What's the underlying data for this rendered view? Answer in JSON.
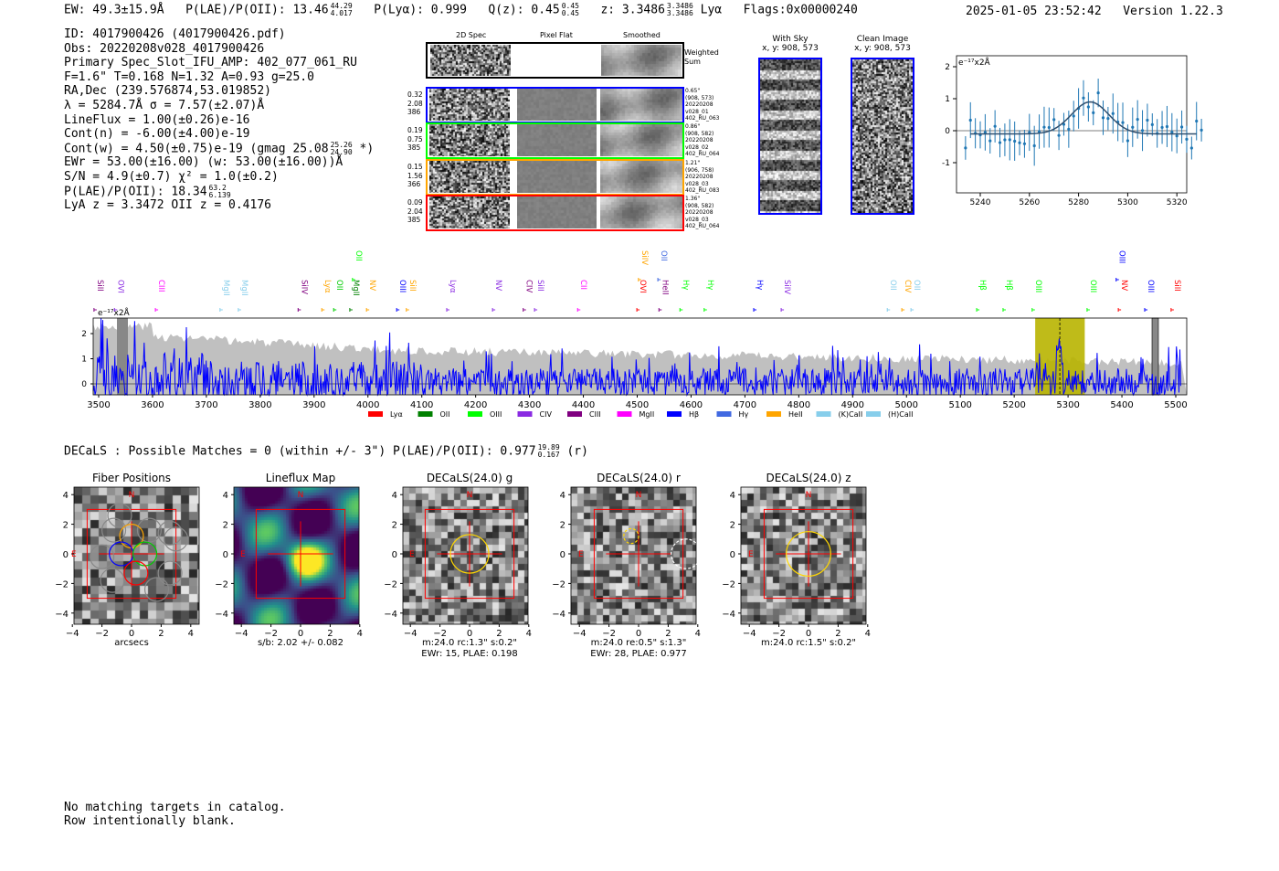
{
  "header": {
    "ew": "EW: 49.3±15.9Å",
    "plae_label": "P(LAE)/P(OII): 13.46",
    "plae_hi": "44.29",
    "plae_lo": "4.017",
    "plya": "P(Lyα): 0.999",
    "qz": "Q(z): 0.45",
    "qz_hi": "0.45",
    "qz_lo": "0.45",
    "z": "z: 3.3486",
    "z_hi": "3.3486",
    "z_lo": "3.3486",
    "z_line": "Lyα",
    "flags": "Flags:0x00000240",
    "datetime": "2025-01-05 23:52:42",
    "version": "Version 1.22.3"
  },
  "info": {
    "lines": [
      "ID: 4017900426 (4017900426.pdf)",
      "Obs: 20220208v028_4017900426",
      "Primary Spec_Slot_IFU_AMP: 402_077_061_RU",
      "F=1.6\"  T=0.168  N=1.32  A=0.93  g=25.0",
      "RA,Dec (239.576874,53.019852)",
      "λ = 5284.7Å  σ = 7.57(±2.07)Å",
      "LineFlux = 1.00(±0.26)e-16",
      "Cont(n) = -6.00(±4.00)e-19"
    ],
    "contw": "Cont(w) = 4.50(±0.75)e-19 (gmag 25.08",
    "contw_hi": "25.26",
    "contw_lo": "24.90",
    "contw_end": "*)",
    "ewr": "EWr = 53.00(±16.00) (w: 53.00(±16.00))Å",
    "sn": "S/N = 4.9(±0.7)  χ² = 1.0(±0.2)",
    "plae": "P(LAE)/P(OII): 18.34",
    "plae_hi": "63.2",
    "plae_lo": "6.139",
    "lyaz": "LyA z = 3.3472  OII z = 0.4176"
  },
  "spec2d": {
    "col_titles": [
      "2D Spec",
      "Pixel Flat",
      "Smoothed"
    ],
    "weighted_label": "Weighted Sum",
    "rows": [
      {
        "color": "#0000ff",
        "left": [
          "0.32",
          "2.08",
          "386"
        ],
        "right": [
          "0.65\"",
          "(908, 573)",
          "20220208",
          "v028_01",
          "402_RU_063"
        ]
      },
      {
        "color": "#00ff00",
        "left": [
          "0.19",
          "0.75",
          "385"
        ],
        "right": [
          "0.86\"",
          "(908, 582)",
          "20220208",
          "v028_02",
          "402_RU_064"
        ]
      },
      {
        "color": "#ffa500",
        "left": [
          "0.15",
          "1.56",
          "366"
        ],
        "right": [
          "1.21\"",
          "(906, 758)",
          "20220208",
          "v028_03",
          "402_RU_083"
        ]
      },
      {
        "color": "#ff0000",
        "left": [
          "0.09",
          "2.04",
          "385"
        ],
        "right": [
          "1.36\"",
          "(908, 582)",
          "20220208",
          "v028_03",
          "402_RU_064"
        ]
      }
    ]
  },
  "sky": {
    "with_sky_title": "With Sky",
    "with_sky_coords": "x, y: 908, 573",
    "clean_title": "Clean Image",
    "clean_coords": "x, y: 908, 573"
  },
  "chart_data": [
    {
      "type": "scatter",
      "name": "line-fit",
      "ylabel": "e$^{-17}$x2Å",
      "ylabel_text": "e⁻¹⁷x2Å",
      "xlim": [
        5230,
        5335
      ],
      "ylim": [
        -1.9,
        2.3
      ],
      "xticks": [
        "5240",
        "5260",
        "5280",
        "5300",
        "5320"
      ],
      "yticks": [
        "2",
        "1",
        "0",
        "-1"
      ],
      "fit": {
        "center": 5284.7,
        "sigma": 7.57,
        "amp": 1.0,
        "cont": -0.1
      }
    },
    {
      "type": "line",
      "name": "full-spectrum",
      "ylabel_text": "e⁻¹⁷x2Å",
      "xlim": [
        3490,
        5510
      ],
      "ylim": [
        -0.5,
        2.6
      ],
      "xticks": [
        "3500",
        "3600",
        "3700",
        "3800",
        "3900",
        "4000",
        "4100",
        "4200",
        "4300",
        "4400",
        "4500",
        "4600",
        "4700",
        "4800",
        "4900",
        "5000",
        "5100",
        "5200",
        "5300",
        "5400",
        "5500"
      ],
      "yticks": [
        "2",
        "1",
        "0"
      ],
      "highlight_range": [
        5239,
        5331
      ],
      "line_center": 5284.7,
      "line_labels": [
        {
          "name": "SiII",
          "w": 3493,
          "c": "#800080",
          "up": false
        },
        {
          "name": "OVI",
          "w": 3531,
          "c": "#8a2be2",
          "up": false
        },
        {
          "name": "CIII",
          "w": 3607,
          "c": "#ff00ff",
          "up": false
        },
        {
          "name": "MgII",
          "w": 3727,
          "c": "#87ceeb",
          "up": false
        },
        {
          "name": "MgII",
          "w": 3761,
          "c": "#87ceeb",
          "up": false
        },
        {
          "name": "SiIV",
          "w": 3872,
          "c": "#800080",
          "up": false
        },
        {
          "name": "Lyα",
          "w": 3916,
          "c": "#ffa500",
          "up": false
        },
        {
          "name": "OII",
          "w": 3938,
          "c": "#00cc00",
          "up": false
        },
        {
          "name": "MgII",
          "w": 3968,
          "c": "#008000",
          "up": false
        },
        {
          "name": "OII",
          "w": 3973,
          "c": "#00ff00",
          "up": true
        },
        {
          "name": "NV",
          "w": 3999,
          "c": "#ffa500",
          "up": false
        },
        {
          "name": "OIII",
          "w": 4055,
          "c": "#0000ff",
          "up": false
        },
        {
          "name": "SiII",
          "w": 4073,
          "c": "#ffa500",
          "up": false
        },
        {
          "name": "Lyα",
          "w": 4148,
          "c": "#8a2be2",
          "up": false
        },
        {
          "name": "NV",
          "w": 4233,
          "c": "#8a2be2",
          "up": false
        },
        {
          "name": "CIV",
          "w": 4290,
          "c": "#800080",
          "up": false
        },
        {
          "name": "SiII",
          "w": 4311,
          "c": "#8a2be2",
          "up": false
        },
        {
          "name": "CII",
          "w": 4391,
          "c": "#ff00ff",
          "up": false
        },
        {
          "name": "OVI",
          "w": 4501,
          "c": "#ff0000",
          "up": false
        },
        {
          "name": "SiIV",
          "w": 4504,
          "c": "#ffa500",
          "up": true
        },
        {
          "name": "HeII",
          "w": 4542,
          "c": "#800080",
          "up": false
        },
        {
          "name": "OII",
          "w": 4540,
          "c": "#4169e1",
          "up": true
        },
        {
          "name": "Hγ",
          "w": 4581,
          "c": "#00ff00",
          "up": false
        },
        {
          "name": "Hγ",
          "w": 4626,
          "c": "#00ff00",
          "up": false
        },
        {
          "name": "Hγ",
          "w": 4718,
          "c": "#0000ff",
          "up": false
        },
        {
          "name": "SiIV",
          "w": 4769,
          "c": "#8a2be2",
          "up": false
        },
        {
          "name": "OII",
          "w": 4966,
          "c": "#87ceeb",
          "up": false
        },
        {
          "name": "CIV",
          "w": 4993,
          "c": "#ffa500",
          "up": false
        },
        {
          "name": "OII",
          "w": 5008,
          "c": "#87ceeb",
          "up": false
        },
        {
          "name": "Hβ",
          "w": 5132,
          "c": "#00ff00",
          "up": false
        },
        {
          "name": "Hβ",
          "w": 5181,
          "c": "#00ff00",
          "up": false
        },
        {
          "name": "OIII",
          "w": 5235,
          "c": "#00ff00",
          "up": false
        },
        {
          "name": "OIII",
          "w": 5337,
          "c": "#00ff00",
          "up": false
        },
        {
          "name": "NV",
          "w": 5395,
          "c": "#ff0000",
          "up": false
        },
        {
          "name": "OIII",
          "w": 5391,
          "c": "#0000ff",
          "up": true
        },
        {
          "name": "OIII",
          "w": 5444,
          "c": "#0000ff",
          "up": false
        },
        {
          "name": "SiII",
          "w": 5493,
          "c": "#ff0000",
          "up": false
        }
      ],
      "legend": [
        {
          "label": "Lyα",
          "c": "#ff0000"
        },
        {
          "label": "OII",
          "c": "#008000"
        },
        {
          "label": "OIII",
          "c": "#00ff00"
        },
        {
          "label": "CIV",
          "c": "#8a2be2"
        },
        {
          "label": "CIII",
          "c": "#800080"
        },
        {
          "label": "MgII",
          "c": "#ff00ff"
        },
        {
          "label": "Hβ",
          "c": "#0000ff"
        },
        {
          "label": "Hγ",
          "c": "#4169e1"
        },
        {
          "label": "HeII",
          "c": "#ffa500"
        },
        {
          "label": "(K)CaII",
          "c": "#87ceeb"
        },
        {
          "label": "(H)CaII",
          "c": "#87ceeb"
        }
      ]
    }
  ],
  "decals": {
    "summary": "DECaLS : Possible Matches = 0 (within +/- 3\")  P(LAE)/P(OII): 0.977",
    "sum_hi": "19.89",
    "sum_lo": "0.167",
    "sum_band": "(r)",
    "axis_ticks": [
      "4",
      "2",
      "0",
      "−2",
      "−4"
    ],
    "xticks": [
      "−4",
      "−2",
      "0",
      "2",
      "4"
    ],
    "compass_n": "N",
    "compass_e": "E",
    "panels": [
      {
        "title": "Fiber Positions",
        "captions": [
          "arcsecs"
        ]
      },
      {
        "title": "Lineflux Map",
        "captions": [
          "s/b: 2.02 +/- 0.082"
        ]
      },
      {
        "title": "DECaLS(24.0) g",
        "captions": [
          "m:24.0 rc:1.3\"  s:0.2\"",
          "EWr: 15, PLAE: 0.198"
        ]
      },
      {
        "title": "DECaLS(24.0) r",
        "captions": [
          "m:24.0  re:0.5\"  s:1.3\"",
          "EWr: 28, PLAE: 0.977"
        ]
      },
      {
        "title": "DECaLS(24.0) z",
        "captions": [
          "m:24.0 rc:1.5\"  s:0.2\""
        ]
      }
    ]
  },
  "footer": {
    "lines": [
      "No matching targets in catalog.",
      "Row intentionally blank."
    ]
  }
}
